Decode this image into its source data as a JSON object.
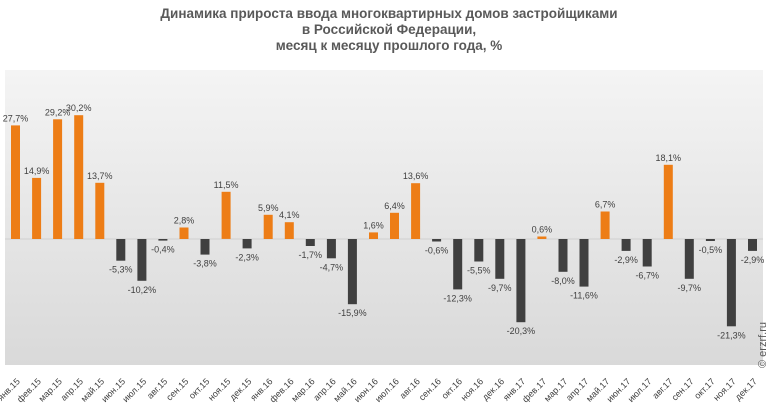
{
  "title": {
    "line1": "Динамика прироста ввода многоквартирных домов застройщиками",
    "line2": "в Российской Федерации,",
    "line3": "месяц к месяцу прошлого года, %"
  },
  "watermark": "© erzrf.ru",
  "colors": {
    "positive": "#ED7D16",
    "negative": "#404040",
    "label": "#404040",
    "area_top": "#F2F2F2",
    "area_bottom": "#D9D9D9",
    "axis": "#D0D0D0"
  },
  "chart_data": {
    "type": "bar",
    "title": "Динамика прироста ввода многоквартирных домов застройщиками в Российской Федерации, месяц к месяцу прошлого года, %",
    "xlabel": "",
    "ylabel": "",
    "grid": false,
    "legend": "none",
    "categories": [
      "янв.15",
      "фев.15",
      "мар.15",
      "апр.15",
      "май.15",
      "июн.15",
      "июл.15",
      "авг.15",
      "сен.15",
      "окт.15",
      "ноя.15",
      "дек.15",
      "янв.16",
      "фев.16",
      "мар.16",
      "апр.16",
      "май.16",
      "июн.16",
      "июл.16",
      "авг.16",
      "сен.16",
      "окт.16",
      "ноя.16",
      "дек.16",
      "янв.17",
      "фев.17",
      "мар.17",
      "апр.17",
      "май.17",
      "июн.17",
      "июл.17",
      "авг.17",
      "сен.17",
      "окт.17",
      "ноя.17",
      "дек.17"
    ],
    "values": [
      27.7,
      14.9,
      29.2,
      30.2,
      13.7,
      -5.3,
      -10.2,
      -0.4,
      2.8,
      -3.8,
      11.5,
      -2.3,
      5.9,
      4.1,
      -1.7,
      -4.7,
      -15.9,
      1.6,
      6.4,
      13.6,
      -0.6,
      -12.3,
      -5.5,
      -9.7,
      -20.3,
      0.6,
      -8.0,
      -11.6,
      6.7,
      -2.9,
      -6.7,
      18.1,
      -9.7,
      -0.5,
      -21.3,
      -2.9
    ],
    "data_labels": [
      "27,7%",
      "14,9%",
      "29,2%",
      "30,2%",
      "13,7%",
      "-5,3%",
      "-10,2%",
      "-0,4%",
      "2,8%",
      "-3,8%",
      "11,5%",
      "-2,3%",
      "5,9%",
      "4,1%",
      "-1,7%",
      "-4,7%",
      "-15,9%",
      "1,6%",
      "6,4%",
      "13,6%",
      "-0,6%",
      "-12,3%",
      "-5,5%",
      "-9,7%",
      "-20,3%",
      "0,6%",
      "-8,0%",
      "-11,6%",
      "6,7%",
      "-2,9%",
      "-6,7%",
      "18,1%",
      "-9,7%",
      "-0,5%",
      "-21,3%",
      "-2,9%"
    ],
    "ylim": [
      -28,
      37
    ]
  }
}
